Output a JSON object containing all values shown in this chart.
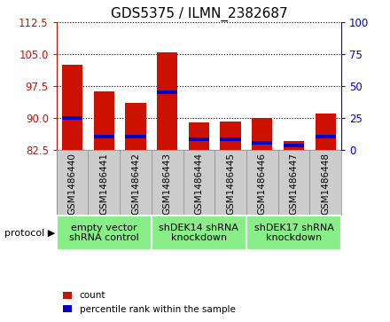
{
  "title": "GDS5375 / ILMN_2382687",
  "samples": [
    "GSM1486440",
    "GSM1486441",
    "GSM1486442",
    "GSM1486443",
    "GSM1486444",
    "GSM1486445",
    "GSM1486446",
    "GSM1486447",
    "GSM1486448"
  ],
  "count_values": [
    102.5,
    96.2,
    93.5,
    105.5,
    89.0,
    89.2,
    90.0,
    84.5,
    91.0
  ],
  "percentile_values": [
    25,
    10,
    10,
    45,
    8,
    8,
    5,
    3,
    10
  ],
  "ylim_left": [
    82.5,
    112.5
  ],
  "ylim_right": [
    0,
    100
  ],
  "yticks_left": [
    82.5,
    90.0,
    97.5,
    105.0,
    112.5
  ],
  "yticks_right": [
    0,
    25,
    50,
    75,
    100
  ],
  "bar_color": "#cc1100",
  "percentile_color": "#0000cc",
  "bar_width": 0.65,
  "base_value": 82.5,
  "protocol_label": "protocol",
  "protocols": [
    {
      "label": "empty vector\nshRNA control",
      "start": 0,
      "end": 3
    },
    {
      "label": "shDEK14 shRNA\nknockdown",
      "start": 3,
      "end": 6
    },
    {
      "label": "shDEK17 shRNA\nknockdown",
      "start": 6,
      "end": 9
    }
  ],
  "protocol_bg": "#88ee88",
  "tick_bg": "#cccccc",
  "background_color": "#ffffff",
  "title_fontsize": 11,
  "tick_fontsize": 7.5,
  "legend_fontsize": 7.5,
  "protocol_fontsize": 8
}
